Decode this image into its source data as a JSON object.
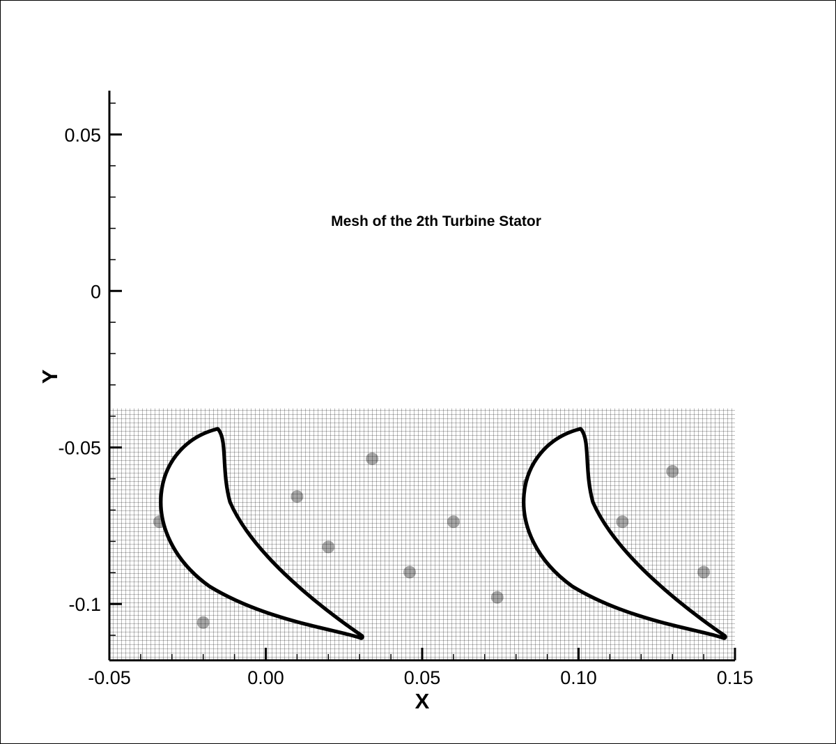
{
  "chart_data": {
    "type": "mesh",
    "title": "Mesh of the 2th Turbine Stator",
    "xlabel": "X",
    "ylabel": "Y",
    "xlim": [
      -0.05,
      0.15
    ],
    "ylim": [
      -0.118,
      0.064
    ],
    "x_ticks": [
      {
        "value": -0.05,
        "label": "-0.05"
      },
      {
        "value": 0.0,
        "label": "0.00"
      },
      {
        "value": 0.05,
        "label": "0.05"
      },
      {
        "value": 0.1,
        "label": "0.10"
      },
      {
        "value": 0.15,
        "label": "0.15"
      }
    ],
    "y_ticks": [
      {
        "value": 0.05,
        "label": "0.05"
      },
      {
        "value": 0.0,
        "label": "0"
      },
      {
        "value": -0.05,
        "label": "-0.05"
      },
      {
        "value": -0.1,
        "label": "-0.1"
      }
    ],
    "mesh_region": {
      "x": [
        -0.05,
        0.15
      ],
      "y": [
        -0.118,
        -0.0375
      ]
    },
    "blades": [
      {
        "leading_edge": [
          -0.0155,
          -0.0445
        ],
        "trailing_edge": [
          0.0305,
          -0.1105
        ]
      },
      {
        "leading_edge": [
          0.1005,
          -0.0445
        ],
        "trailing_edge": [
          0.1465,
          -0.1105
        ]
      }
    ],
    "grid": false,
    "legend": false
  }
}
